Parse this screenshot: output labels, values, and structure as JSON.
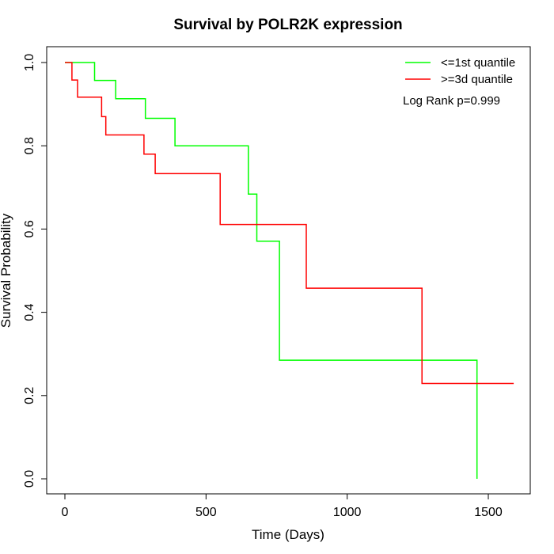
{
  "chart_data": {
    "type": "line",
    "title": "Survival by POLR2K expression",
    "xlabel": "Time (Days)",
    "ylabel": "Survival Probability",
    "xlim": [
      0,
      1600
    ],
    "ylim": [
      0,
      1
    ],
    "x_ticks": [
      "0",
      "500",
      "1000",
      "1500"
    ],
    "y_ticks": [
      "0.0",
      "0.2",
      "0.4",
      "0.6",
      "0.8",
      "1.0"
    ],
    "legend_position": "top-right",
    "annotation": "Log Rank p=0.999",
    "series": [
      {
        "name": "<=1st quantile",
        "color": "#00ff00",
        "x": [
          0,
          105,
          180,
          285,
          390,
          650,
          680,
          760,
          1460,
          1460
        ],
        "y": [
          1.0,
          0.957,
          0.913,
          0.866,
          0.8,
          0.684,
          0.571,
          0.285,
          0.285,
          0.0
        ]
      },
      {
        "name": ">=3d quantile",
        "color": "#ff0000",
        "x": [
          0,
          25,
          45,
          130,
          145,
          280,
          320,
          550,
          855,
          1265,
          1590
        ],
        "y": [
          1.0,
          0.958,
          0.917,
          0.87,
          0.826,
          0.78,
          0.733,
          0.611,
          0.458,
          0.229,
          0.229
        ]
      }
    ]
  }
}
